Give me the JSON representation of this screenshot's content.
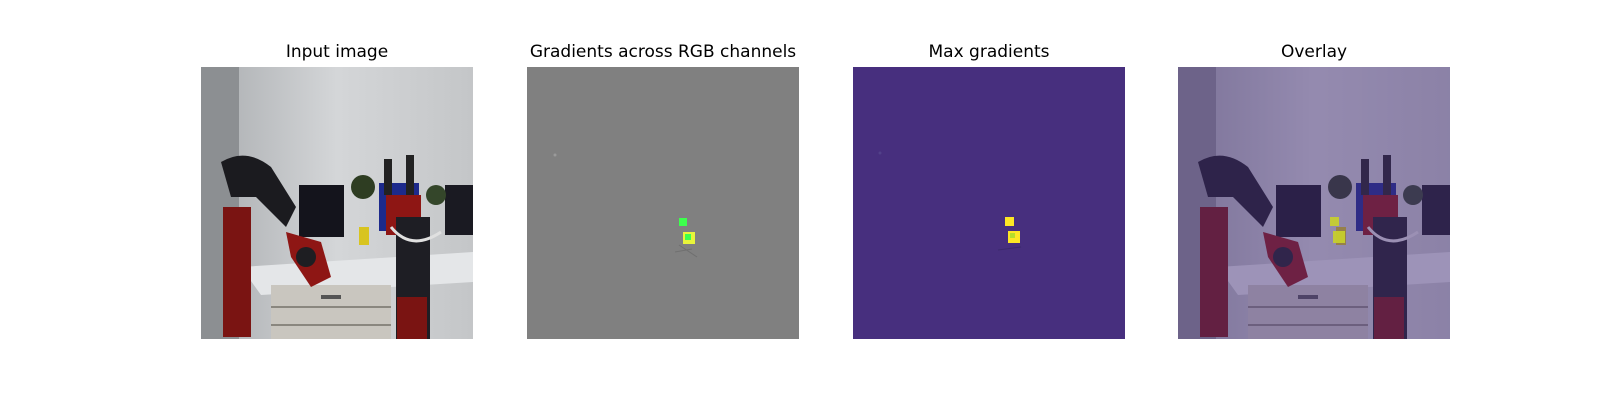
{
  "figure": {
    "panels": [
      {
        "title": "Input image",
        "kind": "input"
      },
      {
        "title": "Gradients across RGB channels",
        "kind": "rgb-gradients",
        "colors": {
          "background": "#808080",
          "blob_green": "#3dff4d",
          "blob_yellow": "#e8f53a"
        }
      },
      {
        "title": "Max gradients",
        "kind": "max-gradients",
        "colors": {
          "background": "#472f7e",
          "blob_yellow": "#fde725",
          "blob_green": "#b5de2b"
        }
      },
      {
        "title": "Overlay",
        "kind": "overlay",
        "colors": {
          "tint": "#472f7e"
        }
      }
    ]
  }
}
